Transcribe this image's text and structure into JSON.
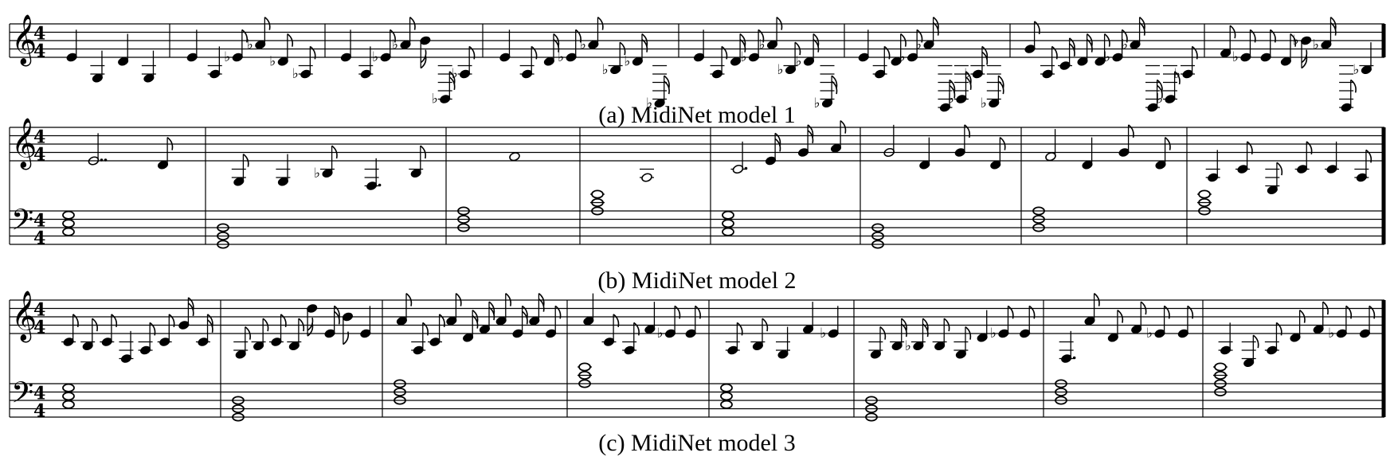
{
  "figure": {
    "captions": [
      "(a) MidiNet model 1",
      "(b) MidiNet model 2",
      "(c) MidiNet model 3"
    ],
    "time_signature": "4/4",
    "staff_color": "#000000"
  },
  "systems": [
    {
      "name": "model-1",
      "staves": [
        "treble"
      ],
      "measures": 8,
      "final_barline": true,
      "melody": [
        {
          "m": 1,
          "notes": [
            {
              "p": "E4",
              "d": 4
            },
            {
              "p": "G3",
              "d": 4
            },
            {
              "p": "D4",
              "d": 4
            },
            {
              "p": "G3",
              "d": 4
            }
          ]
        },
        {
          "m": 2,
          "notes": [
            {
              "p": "E4",
              "d": 4
            },
            {
              "p": "A3",
              "d": 4
            },
            {
              "p": "Eb4",
              "d": 8
            },
            {
              "p": "Ab4",
              "d": 8
            },
            {
              "p": "Db4",
              "d": 8
            },
            {
              "p": "Ab3",
              "d": 8
            }
          ]
        },
        {
          "m": 3,
          "notes": [
            {
              "p": "E4",
              "d": 4
            },
            {
              "p": "A3",
              "d": 4
            },
            {
              "p": "Eb4",
              "d": 8
            },
            {
              "p": "Ab4",
              "d": 8
            },
            {
              "p": "B4",
              "d": 16
            },
            {
              "p": "Bb2",
              "d": 16
            },
            {
              "p": "Ab3",
              "d": 8
            }
          ]
        },
        {
          "m": 4,
          "notes": [
            {
              "p": "E4",
              "d": 4
            },
            {
              "p": "A3",
              "d": 8
            },
            {
              "p": "D4",
              "d": 16
            },
            {
              "p": "Eb4",
              "d": 8
            },
            {
              "p": "Ab4",
              "d": 8
            },
            {
              "p": "Bb3",
              "d": 8
            },
            {
              "p": "Db4",
              "d": 16
            },
            {
              "p": "Ab2",
              "d": 16
            }
          ]
        },
        {
          "m": 5,
          "notes": [
            {
              "p": "E4",
              "d": 4
            },
            {
              "p": "A3",
              "d": 8
            },
            {
              "p": "D4",
              "d": 16
            },
            {
              "p": "Eb4",
              "d": 8
            },
            {
              "p": "Ab4",
              "d": 8
            },
            {
              "p": "Bb3",
              "d": 8
            },
            {
              "p": "Db4",
              "d": 16
            },
            {
              "p": "Ab2",
              "d": 16
            }
          ]
        },
        {
          "m": 6,
          "notes": [
            {
              "p": "E4",
              "d": 4
            },
            {
              "p": "A3",
              "d": 8
            },
            {
              "p": "D4",
              "d": 8
            },
            {
              "p": "Eb4",
              "d": 8
            },
            {
              "p": "Ab4",
              "d": 16
            },
            {
              "p": "G2",
              "d": 16
            },
            {
              "p": "Bb2",
              "d": 16
            },
            {
              "p": "Ab3",
              "d": 16
            },
            {
              "p": "Ab2",
              "d": 16
            }
          ]
        },
        {
          "m": 7,
          "notes": [
            {
              "p": "G4",
              "d": 8
            },
            {
              "p": "A3",
              "d": 8
            },
            {
              "p": "C4",
              "d": 16
            },
            {
              "p": "D4",
              "d": 16
            },
            {
              "p": "D4",
              "d": 8
            },
            {
              "p": "Eb4",
              "d": 8
            },
            {
              "p": "Ab4",
              "d": 16
            },
            {
              "p": "G2",
              "d": 16
            },
            {
              "p": "Bb2",
              "d": 8
            },
            {
              "p": "Ab3",
              "d": 8
            }
          ]
        },
        {
          "m": 8,
          "notes": [
            {
              "p": "F4",
              "d": 8
            },
            {
              "p": "Eb4",
              "d": 8
            },
            {
              "p": "E4",
              "d": 8
            },
            {
              "p": "D4",
              "d": 8
            },
            {
              "p": "Bb4",
              "d": 16
            },
            {
              "p": "Ab4",
              "d": 16
            },
            {
              "p": "G2",
              "d": 8
            },
            {
              "p": "Bb3",
              "d": 4
            }
          ]
        }
      ]
    },
    {
      "name": "model-2",
      "staves": [
        "treble",
        "bass"
      ],
      "measures": 8,
      "final_barline": true,
      "melody": [
        {
          "m": 1,
          "notes": [
            {
              "p": "E4",
              "d": "2.."
            },
            {
              "p": "D4",
              "d": 8
            }
          ]
        },
        {
          "m": 2,
          "notes": [
            {
              "p": "G3",
              "d": 8
            },
            {
              "p": "G3",
              "d": 4
            },
            {
              "p": "Bb3",
              "d": 8
            },
            {
              "p": "F3",
              "d": "4."
            },
            {
              "p": "B3",
              "d": 8
            }
          ]
        },
        {
          "m": 3,
          "notes": [
            {
              "p": "F4",
              "d": 1
            }
          ]
        },
        {
          "m": 4,
          "notes": [
            {
              "p": "A3",
              "d": 1
            }
          ]
        },
        {
          "m": 5,
          "notes": [
            {
              "p": "C4",
              "d": "2."
            },
            {
              "p": "E4",
              "d": 16
            },
            {
              "p": "G4",
              "d": 16
            },
            {
              "p": "A4",
              "d": 8
            }
          ]
        },
        {
          "m": 6,
          "notes": [
            {
              "p": "G4",
              "d": 2
            },
            {
              "p": "D4",
              "d": 4
            },
            {
              "p": "G4",
              "d": 8
            },
            {
              "p": "D4",
              "d": 8
            }
          ]
        },
        {
          "m": 7,
          "notes": [
            {
              "p": "F4",
              "d": 2
            },
            {
              "p": "D4",
              "d": 4
            },
            {
              "p": "G4",
              "d": 8
            },
            {
              "p": "D4",
              "d": 8
            }
          ]
        },
        {
          "m": 8,
          "notes": [
            {
              "p": "A3",
              "d": 4
            },
            {
              "p": "C4",
              "d": 8
            },
            {
              "p": "E3",
              "d": 8
            },
            {
              "p": "C4",
              "d": 8
            },
            {
              "p": "C4",
              "d": 4
            },
            {
              "p": "A3",
              "d": 8
            }
          ]
        }
      ],
      "chords": [
        {
          "m": 1,
          "notes": [
            "C3",
            "E3",
            "G3"
          ]
        },
        {
          "m": 2,
          "notes": [
            "G2",
            "B2",
            "D3"
          ]
        },
        {
          "m": 3,
          "notes": [
            "D3",
            "F3",
            "A3"
          ]
        },
        {
          "m": 4,
          "notes": [
            "A3",
            "C4",
            "E4"
          ]
        },
        {
          "m": 5,
          "notes": [
            "C3",
            "E3",
            "G3"
          ]
        },
        {
          "m": 6,
          "notes": [
            "G2",
            "B2",
            "D3"
          ]
        },
        {
          "m": 7,
          "notes": [
            "D3",
            "F3",
            "A3"
          ]
        },
        {
          "m": 8,
          "notes": [
            "A3",
            "C4",
            "E4"
          ]
        }
      ]
    },
    {
      "name": "model-3",
      "staves": [
        "treble",
        "bass"
      ],
      "measures": 8,
      "final_barline": true,
      "melody": [
        {
          "m": 1,
          "notes": [
            {
              "p": "C4",
              "d": 8
            },
            {
              "p": "B3",
              "d": 8
            },
            {
              "p": "C4",
              "d": 8
            },
            {
              "p": "F3",
              "d": 4
            },
            {
              "p": "A3",
              "d": 8
            },
            {
              "p": "C4",
              "d": 8
            },
            {
              "p": "G4",
              "d": 16
            },
            {
              "p": "C4",
              "d": 16
            }
          ]
        },
        {
          "m": 2,
          "notes": [
            {
              "p": "G3",
              "d": 8
            },
            {
              "p": "B3",
              "d": 8
            },
            {
              "p": "C4",
              "d": 8
            },
            {
              "p": "B3",
              "d": 8
            },
            {
              "p": "D5",
              "d": 16
            },
            {
              "p": "E4",
              "d": 16
            },
            {
              "p": "B4",
              "d": 8
            },
            {
              "p": "E4",
              "d": 4
            }
          ]
        },
        {
          "m": 3,
          "notes": [
            {
              "p": "A4",
              "d": 8
            },
            {
              "p": "A3",
              "d": 8
            },
            {
              "p": "C4",
              "d": 8
            },
            {
              "p": "A4",
              "d": 8
            },
            {
              "p": "D4",
              "d": 16
            },
            {
              "p": "F4",
              "d": 16
            },
            {
              "p": "A4",
              "d": 8
            },
            {
              "p": "E4",
              "d": 16
            },
            {
              "p": "A4",
              "d": 16
            },
            {
              "p": "E4",
              "d": 8
            }
          ]
        },
        {
          "m": 4,
          "notes": [
            {
              "p": "A4",
              "d": 4
            },
            {
              "p": "C4",
              "d": 8
            },
            {
              "p": "A3",
              "d": 8
            },
            {
              "p": "F4",
              "d": 4
            },
            {
              "p": "Eb4",
              "d": 8
            },
            {
              "p": "E4",
              "d": 8
            }
          ]
        },
        {
          "m": 5,
          "notes": [
            {
              "p": "A3",
              "d": 8
            },
            {
              "p": "B3",
              "d": 8
            },
            {
              "p": "G3",
              "d": 4
            },
            {
              "p": "F4",
              "d": 4
            },
            {
              "p": "Eb4",
              "d": 4
            }
          ]
        },
        {
          "m": 6,
          "notes": [
            {
              "p": "G3",
              "d": 8
            },
            {
              "p": "B3",
              "d": 16
            },
            {
              "p": "Bb3",
              "d": 16
            },
            {
              "p": "B3",
              "d": 8
            },
            {
              "p": "G3",
              "d": 8
            },
            {
              "p": "D4",
              "d": 4
            },
            {
              "p": "Eb4",
              "d": 8
            },
            {
              "p": "E4",
              "d": 8
            }
          ]
        },
        {
          "m": 7,
          "notes": [
            {
              "p": "F3",
              "d": "4."
            },
            {
              "p": "A4",
              "d": 8
            },
            {
              "p": "D4",
              "d": 8
            },
            {
              "p": "F4",
              "d": 8
            },
            {
              "p": "Eb4",
              "d": 8
            },
            {
              "p": "E4",
              "d": 8
            }
          ]
        },
        {
          "m": 8,
          "notes": [
            {
              "p": "A3",
              "d": 4
            },
            {
              "p": "E3",
              "d": 8
            },
            {
              "p": "A3",
              "d": 8
            },
            {
              "p": "D4",
              "d": 8
            },
            {
              "p": "F4",
              "d": 8
            },
            {
              "p": "Eb4",
              "d": 8
            },
            {
              "p": "E4",
              "d": 8
            }
          ]
        }
      ],
      "chords": [
        {
          "m": 1,
          "notes": [
            "C3",
            "E3",
            "G3"
          ]
        },
        {
          "m": 2,
          "notes": [
            "G2",
            "B2",
            "D3"
          ]
        },
        {
          "m": 3,
          "notes": [
            "D3",
            "F3",
            "A3"
          ]
        },
        {
          "m": 4,
          "notes": [
            "A3",
            "C4",
            "E4"
          ]
        },
        {
          "m": 5,
          "notes": [
            "C3",
            "E3",
            "G3"
          ]
        },
        {
          "m": 6,
          "notes": [
            "G2",
            "B2",
            "D3"
          ]
        },
        {
          "m": 7,
          "notes": [
            "D3",
            "F3",
            "A3"
          ]
        },
        {
          "m": 8,
          "notes": [
            "F3",
            "A3",
            "C4",
            "E4"
          ]
        }
      ]
    }
  ]
}
